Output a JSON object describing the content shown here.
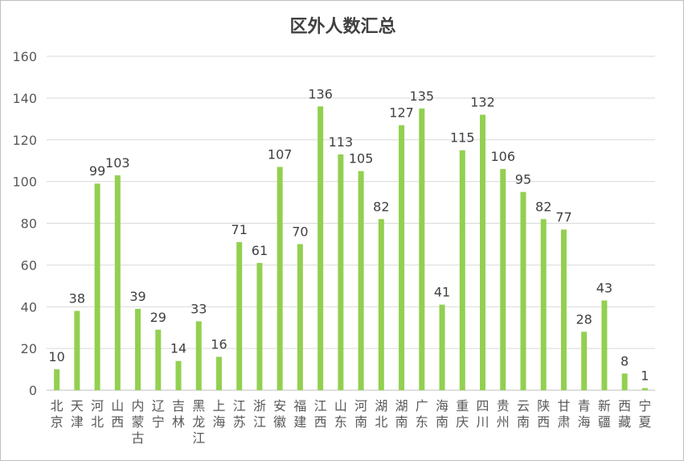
{
  "chart_data": {
    "type": "bar",
    "title": "区外人数汇总",
    "xlabel": "",
    "ylabel": "",
    "ylim": [
      0,
      160
    ],
    "yticks": [
      0,
      20,
      40,
      60,
      80,
      100,
      120,
      140,
      160
    ],
    "grid": true,
    "legend": "none",
    "bar_color": "#92d050",
    "categories": [
      "北京",
      "天津",
      "河北",
      "山西",
      "内蒙古",
      "辽宁",
      "吉林",
      "黑龙江",
      "上海",
      "江苏",
      "浙江",
      "安徽",
      "福建",
      "江西",
      "山东",
      "河南",
      "湖北",
      "湖南",
      "广东",
      "海南",
      "重庆",
      "四川",
      "贵州",
      "云南",
      "陕西",
      "甘肃",
      "青海",
      "新疆",
      "西藏",
      "宁夏"
    ],
    "values": [
      10,
      38,
      99,
      103,
      39,
      29,
      14,
      33,
      16,
      71,
      61,
      107,
      70,
      136,
      113,
      105,
      82,
      127,
      135,
      41,
      115,
      132,
      106,
      95,
      82,
      77,
      28,
      43,
      8,
      1
    ]
  }
}
